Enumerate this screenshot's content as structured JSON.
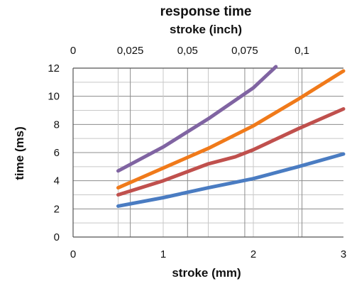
{
  "chart_data": {
    "type": "line",
    "title": "response time",
    "subtitle": "stroke (inch)",
    "xlabel": "stroke (mm)",
    "ylabel": "time (ms)",
    "xlim": [
      0,
      3
    ],
    "ylim": [
      0,
      12
    ],
    "x_ticks": [
      "0",
      "1",
      "2",
      "3"
    ],
    "y_ticks": [
      "0",
      "2",
      "4",
      "6",
      "8",
      "10",
      "12"
    ],
    "top_axis_ticks": [
      "0",
      "0,025",
      "0,05",
      "0,075",
      "0,1"
    ],
    "top_axis_values": [
      0,
      0.025,
      0.05,
      0.075,
      0.1
    ],
    "top_axis_factor_mm_per_inch": 25.4,
    "grid": true,
    "legend": "none",
    "series": [
      {
        "color": "#4a7cc2",
        "x": [
          0.5,
          1.0,
          1.5,
          2.0,
          2.5,
          3.0
        ],
        "y": [
          2.2,
          2.8,
          3.5,
          4.15,
          5.0,
          5.9
        ]
      },
      {
        "color": "#c0504d",
        "x": [
          0.5,
          1.0,
          1.5,
          1.8,
          2.0,
          2.5,
          3.0
        ],
        "y": [
          3.0,
          4.0,
          5.2,
          5.7,
          6.2,
          7.7,
          9.1
        ]
      },
      {
        "color": "#f07a1a",
        "x": [
          0.5,
          1.0,
          1.5,
          2.0,
          2.5,
          3.0
        ],
        "y": [
          3.5,
          4.9,
          6.3,
          7.9,
          9.8,
          11.8
        ]
      },
      {
        "color": "#8064a2",
        "x": [
          0.5,
          1.0,
          1.5,
          2.0,
          2.25
        ],
        "y": [
          4.7,
          6.4,
          8.4,
          10.6,
          12.1
        ]
      }
    ]
  }
}
